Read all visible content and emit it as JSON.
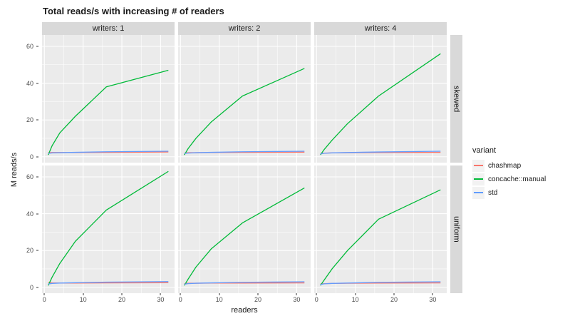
{
  "title": "Total reads/s with increasing # of readers",
  "axes": {
    "x_label": "readers",
    "y_label": "M reads/s"
  },
  "facets": {
    "cols": [
      "writers: 1",
      "writers: 2",
      "writers: 4"
    ],
    "rows": [
      "skewed",
      "uniform"
    ]
  },
  "legend": {
    "title": "variant",
    "entries": [
      {
        "label": "chashmap",
        "color": "#F8766D"
      },
      {
        "label": "concache::manual",
        "color": "#00BA38"
      },
      {
        "label": "std",
        "color": "#619CFF"
      }
    ]
  },
  "colors": {
    "panel_bg": "#EBEBEB",
    "strip_bg": "#D9D9D9",
    "grid": "#FFFFFF"
  },
  "chart_data": {
    "type": "line",
    "title": "Total reads/s with increasing # of readers",
    "xlabel": "readers",
    "ylabel": "M reads/s",
    "x": [
      1,
      2,
      4,
      8,
      16,
      32
    ],
    "xlim": [
      -0.6,
      33.6
    ],
    "ylim": [
      -3.2,
      66.2
    ],
    "x_ticks": [
      0,
      10,
      20,
      30
    ],
    "y_ticks": [
      0,
      20,
      40,
      60
    ],
    "minor_x": [
      5,
      15,
      25
    ],
    "minor_y": [
      10,
      30,
      50
    ],
    "grid": true,
    "legend_position": "right",
    "panels": [
      {
        "row": "skewed",
        "col": "writers: 1",
        "series": [
          {
            "name": "chashmap",
            "values": [
              2.2,
              2.3,
              2.3,
              2.3,
              2.4,
              2.6
            ]
          },
          {
            "name": "concache::manual",
            "values": [
              1,
              6,
              13,
              22,
              38,
              47
            ]
          },
          {
            "name": "std",
            "values": [
              1.8,
              2.1,
              2.2,
              2.4,
              2.7,
              3.0
            ]
          }
        ]
      },
      {
        "row": "skewed",
        "col": "writers: 2",
        "series": [
          {
            "name": "chashmap",
            "values": [
              2.0,
              2.2,
              2.2,
              2.3,
              2.4,
              2.5
            ]
          },
          {
            "name": "concache::manual",
            "values": [
              1,
              4.5,
              10,
              19,
              33,
              48
            ]
          },
          {
            "name": "std",
            "values": [
              1.8,
              2.0,
              2.2,
              2.4,
              2.7,
              3.0
            ]
          }
        ]
      },
      {
        "row": "skewed",
        "col": "writers: 4",
        "series": [
          {
            "name": "chashmap",
            "values": [
              1.8,
              2.0,
              2.1,
              2.2,
              2.3,
              2.4
            ]
          },
          {
            "name": "concache::manual",
            "values": [
              1,
              4,
              9,
              18,
              33,
              56
            ]
          },
          {
            "name": "std",
            "values": [
              1.5,
              1.9,
              2.1,
              2.3,
              2.6,
              3.0
            ]
          }
        ]
      },
      {
        "row": "uniform",
        "col": "writers: 1",
        "series": [
          {
            "name": "chashmap",
            "values": [
              2.5,
              2.4,
              2.3,
              2.3,
              2.4,
              2.5
            ]
          },
          {
            "name": "concache::manual",
            "values": [
              1,
              5.5,
              13,
              25,
              42,
              63
            ]
          },
          {
            "name": "std",
            "values": [
              1.8,
              2.1,
              2.3,
              2.5,
              2.8,
              3.1
            ]
          }
        ]
      },
      {
        "row": "uniform",
        "col": "writers: 2",
        "series": [
          {
            "name": "chashmap",
            "values": [
              2.0,
              2.2,
              2.2,
              2.3,
              2.3,
              2.4
            ]
          },
          {
            "name": "concache::manual",
            "values": [
              1,
              4.5,
              11,
              21,
              35,
              54
            ]
          },
          {
            "name": "std",
            "values": [
              1.7,
              2.0,
              2.2,
              2.4,
              2.7,
              3.0
            ]
          }
        ]
      },
      {
        "row": "uniform",
        "col": "writers: 4",
        "series": [
          {
            "name": "chashmap",
            "values": [
              1.8,
              2.0,
              2.1,
              2.2,
              2.3,
              2.4
            ]
          },
          {
            "name": "concache::manual",
            "values": [
              1,
              4,
              10,
              20,
              37,
              53
            ]
          },
          {
            "name": "std",
            "values": [
              1.5,
              1.9,
              2.1,
              2.3,
              2.7,
              3.0
            ]
          }
        ]
      }
    ]
  }
}
